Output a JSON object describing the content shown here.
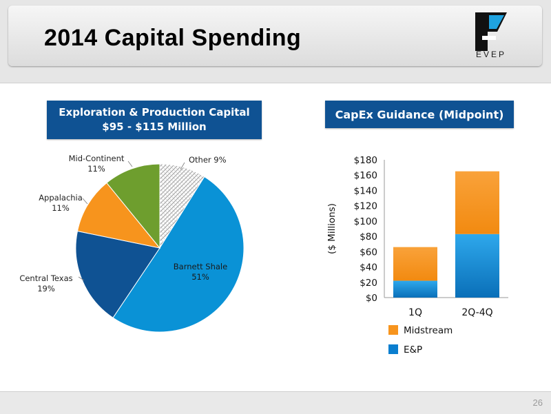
{
  "header": {
    "title": "2014 Capital Spending",
    "logo_text": "EVEP"
  },
  "footer": {
    "page_number": "26"
  },
  "colors": {
    "barnett": "#0a92d6",
    "central_texas": "#0f5293",
    "appalachia": "#f7941d",
    "mid_continent": "#6e9e2e",
    "other": "#ffffff",
    "midstream": "#f7941d",
    "ep": "#0a7ecf"
  },
  "chart_data": [
    {
      "type": "pie",
      "title": "Exploration & Production Capital",
      "subtitle": "$95 - $115 Million",
      "slices": [
        {
          "name": "Other",
          "label": "Other 9%",
          "value": 9
        },
        {
          "name": "Barnett Shale",
          "pct": "51%",
          "value": 51
        },
        {
          "name": "Central Texas",
          "pct": "19%",
          "value": 19
        },
        {
          "name": "Appalachia",
          "pct": "11%",
          "value": 11
        },
        {
          "name": "Mid-Continent",
          "pct": "11%",
          "value": 11
        }
      ]
    },
    {
      "type": "bar",
      "stacked": true,
      "title": "CapEx Guidance (Midpoint)",
      "ylabel": "($ Millions)",
      "ylim": [
        0,
        180
      ],
      "yticks": [
        "$0",
        "$20",
        "$40",
        "$60",
        "$80",
        "$100",
        "$120",
        "$140",
        "$160",
        "$180"
      ],
      "categories": [
        "1Q",
        "2Q-4Q"
      ],
      "series": [
        {
          "name": "E&P",
          "values": [
            22,
            83
          ]
        },
        {
          "name": "Midstream",
          "values": [
            44,
            82
          ]
        }
      ],
      "legend": [
        "Midstream",
        "E&P"
      ],
      "legend_position": "bottom-left"
    }
  ]
}
